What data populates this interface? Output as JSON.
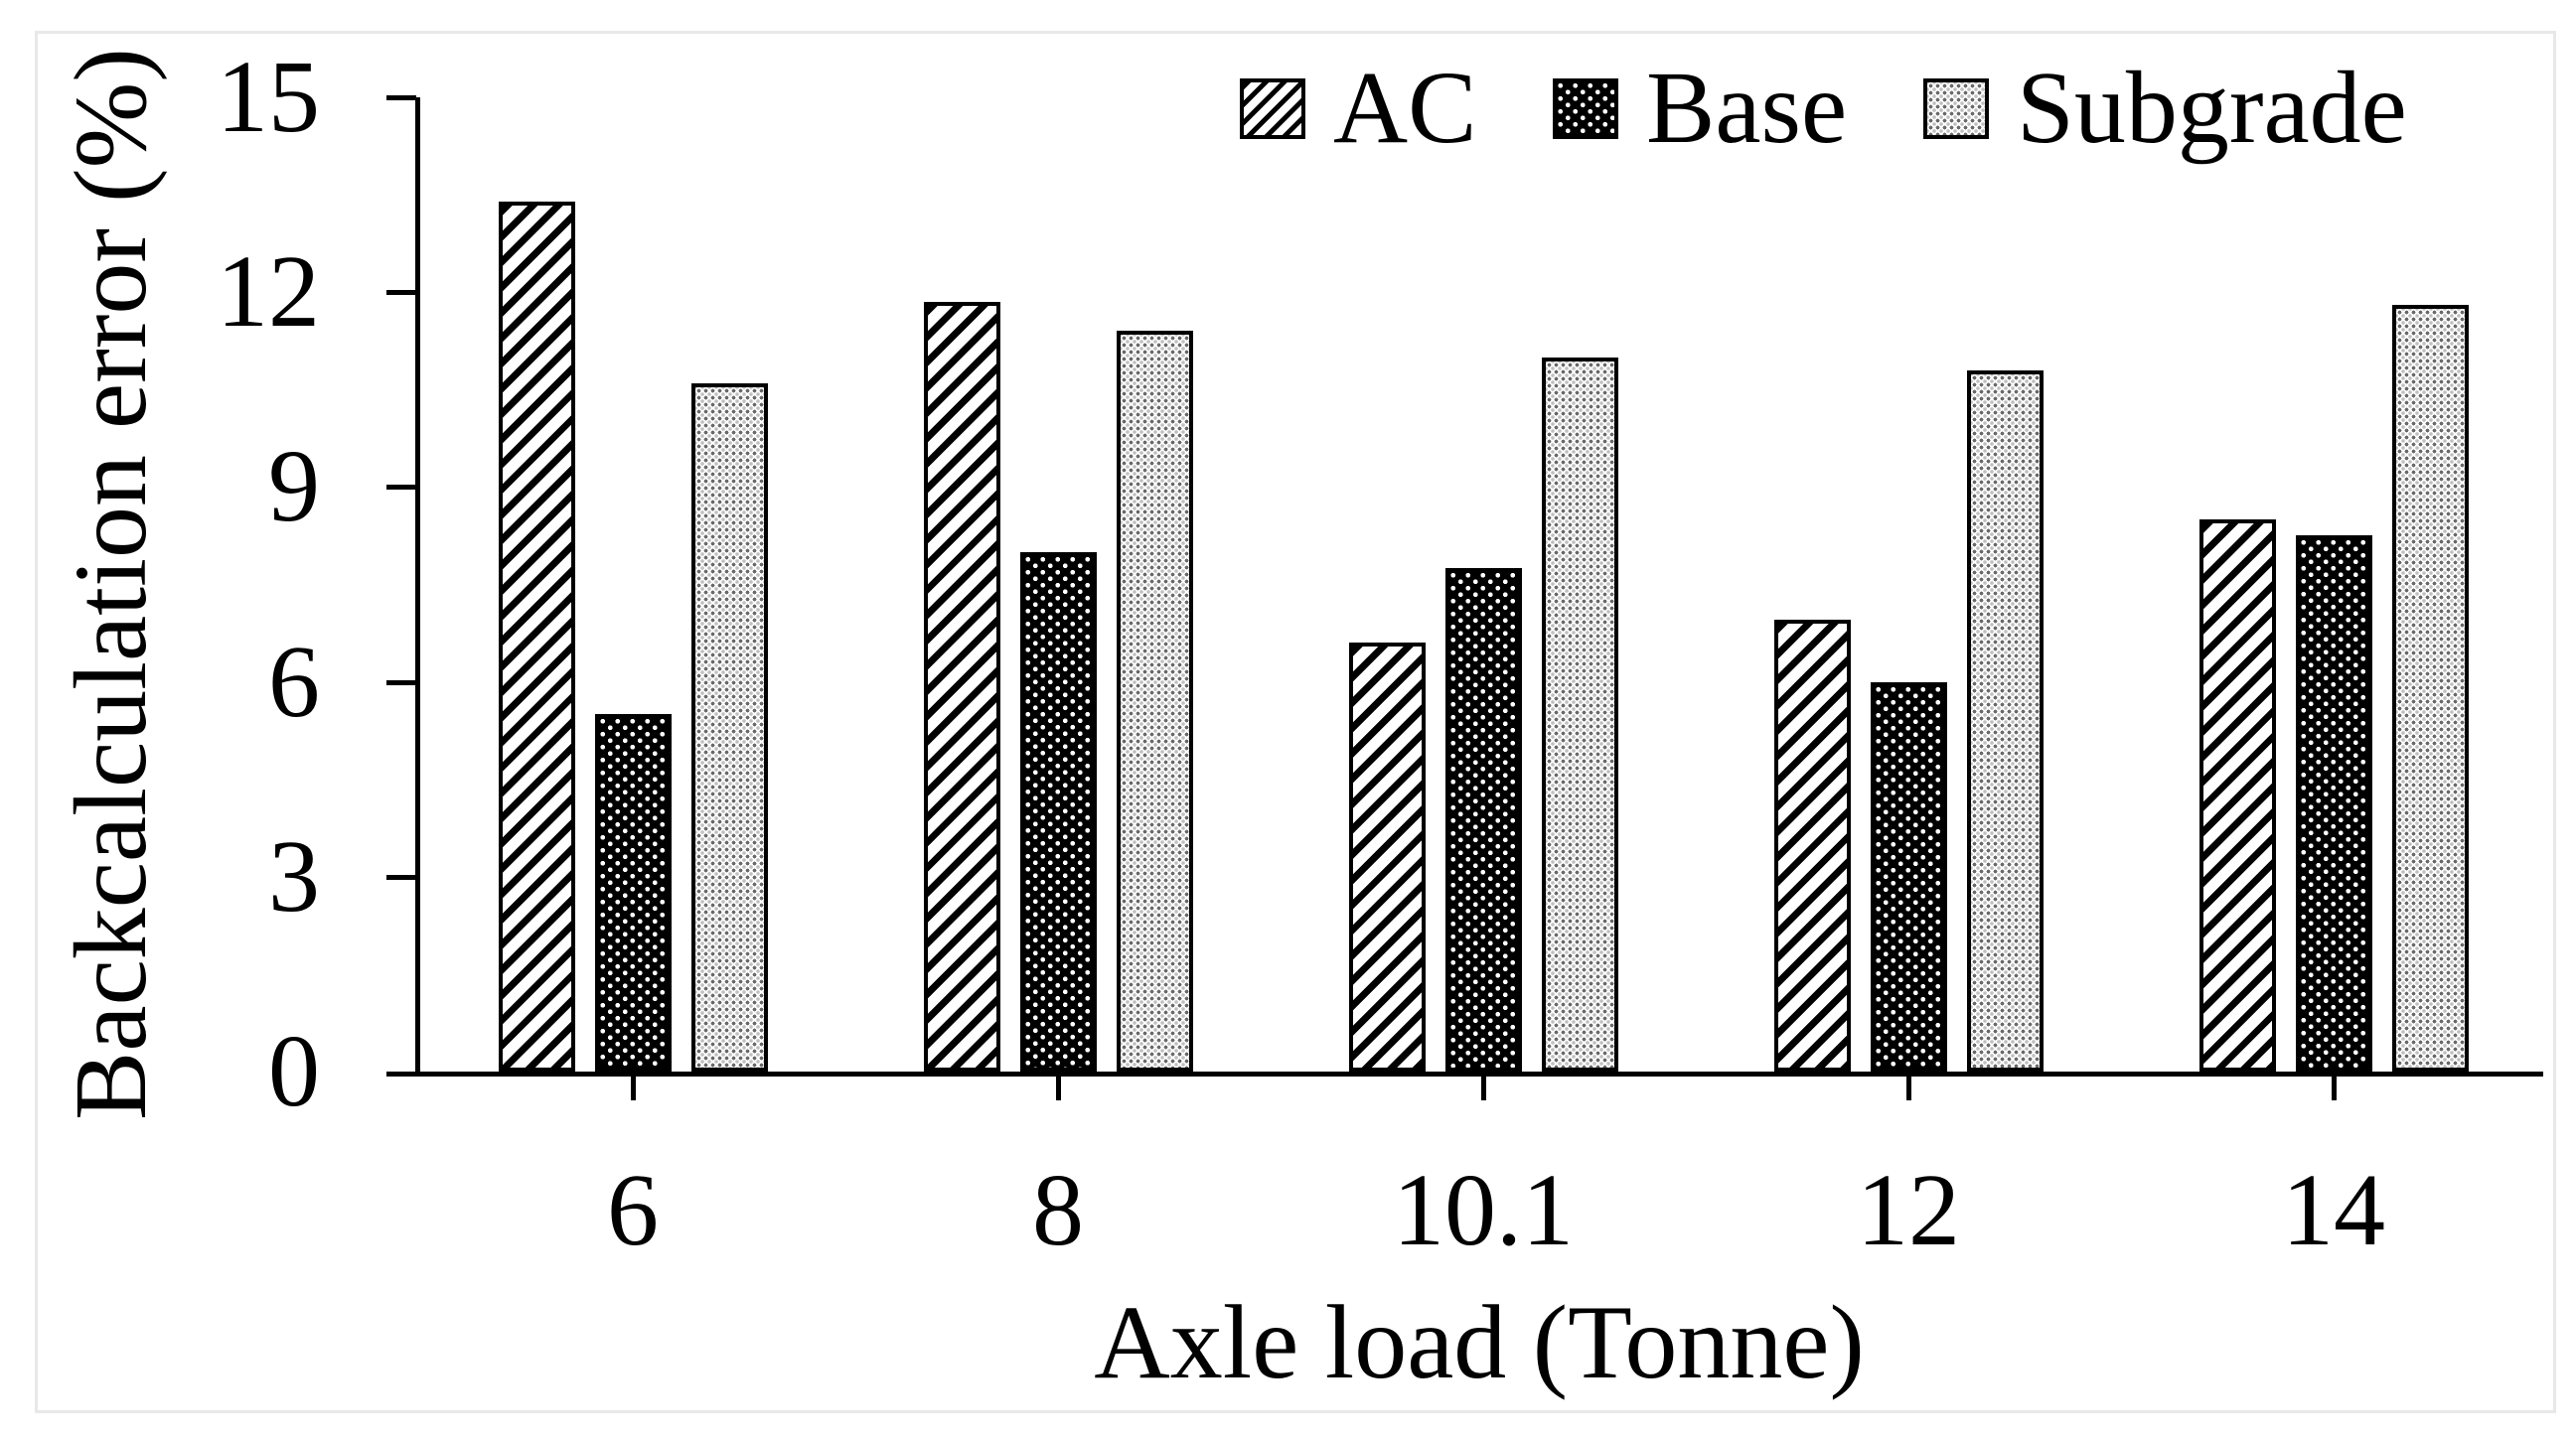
{
  "chart_data": {
    "type": "bar",
    "title": "",
    "xlabel": "Axle load (Tonne)",
    "ylabel": "Backcalculation error (%)",
    "categories": [
      "6",
      "8",
      "10.1",
      "12",
      "14"
    ],
    "series": [
      {
        "name": "AC",
        "pattern": "diagonal-hatch",
        "values": [
          13.4,
          11.85,
          6.6,
          6.95,
          8.5
        ]
      },
      {
        "name": "Base",
        "pattern": "black-white-dots",
        "values": [
          5.5,
          8.0,
          7.75,
          6.0,
          8.25
        ]
      },
      {
        "name": "Subgrade",
        "pattern": "gray-dot-grid",
        "values": [
          10.6,
          11.4,
          11.0,
          10.8,
          11.8
        ]
      }
    ],
    "ylim": [
      0,
      15
    ],
    "yticks": [
      0,
      3,
      6,
      9,
      12,
      15
    ],
    "legend_position": "top-center",
    "grid": false,
    "style": "monochrome-patterns"
  },
  "colors": {
    "foreground": "#000000",
    "background": "#ffffff",
    "frame_border": "#e8e8e8",
    "subgrade_dots": "#6a6a6a"
  }
}
